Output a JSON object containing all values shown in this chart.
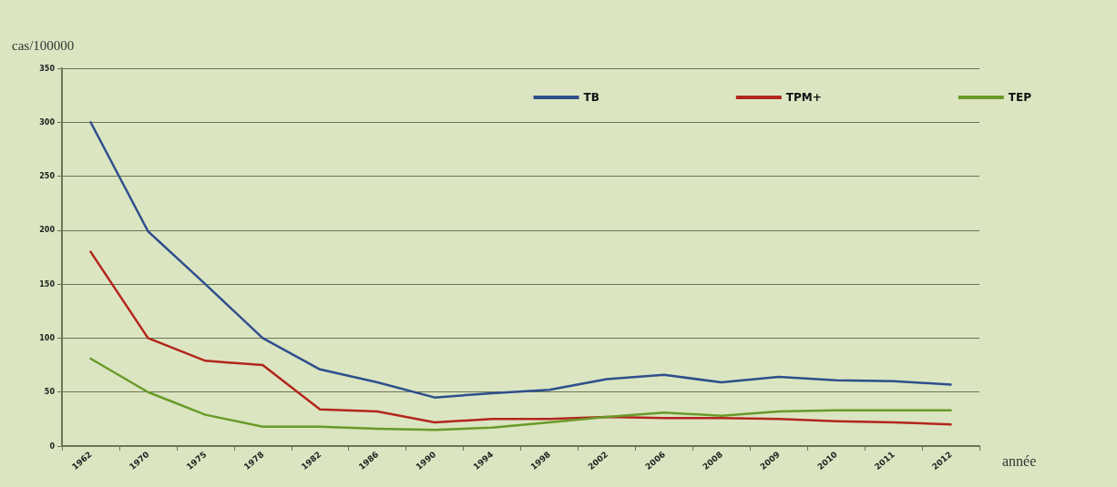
{
  "chart_data": {
    "type": "line",
    "ylabel": "cas/100000",
    "xlabel": "année",
    "categories": [
      "1962",
      "1970",
      "1975",
      "1978",
      "1982",
      "1986",
      "1990",
      "1994",
      "1998",
      "2002",
      "2006",
      "2008",
      "2009",
      "2010",
      "2011",
      "2012"
    ],
    "series": [
      {
        "name": "TB",
        "color": "#2e4f8c",
        "values": [
          300,
          199,
          150,
          100,
          71,
          59,
          45,
          49,
          52,
          62,
          66,
          59,
          64,
          61,
          60,
          57
        ]
      },
      {
        "name": "TPM+",
        "color": "#b2261c",
        "values": [
          180,
          100,
          79,
          75,
          34,
          32,
          22,
          25,
          25,
          27,
          26,
          26,
          25,
          23,
          22,
          20
        ]
      },
      {
        "name": "TEP",
        "color": "#6a9a2a",
        "values": [
          81,
          50,
          29,
          18,
          18,
          16,
          15,
          17,
          22,
          27,
          31,
          28,
          32,
          33,
          33,
          33
        ]
      }
    ],
    "ylim": [
      0,
      350
    ],
    "yticks": [
      0,
      50,
      100,
      150,
      200,
      250,
      300,
      350
    ],
    "grid": "y",
    "legend": "top right",
    "marker": "none",
    "line_style": "solid"
  }
}
